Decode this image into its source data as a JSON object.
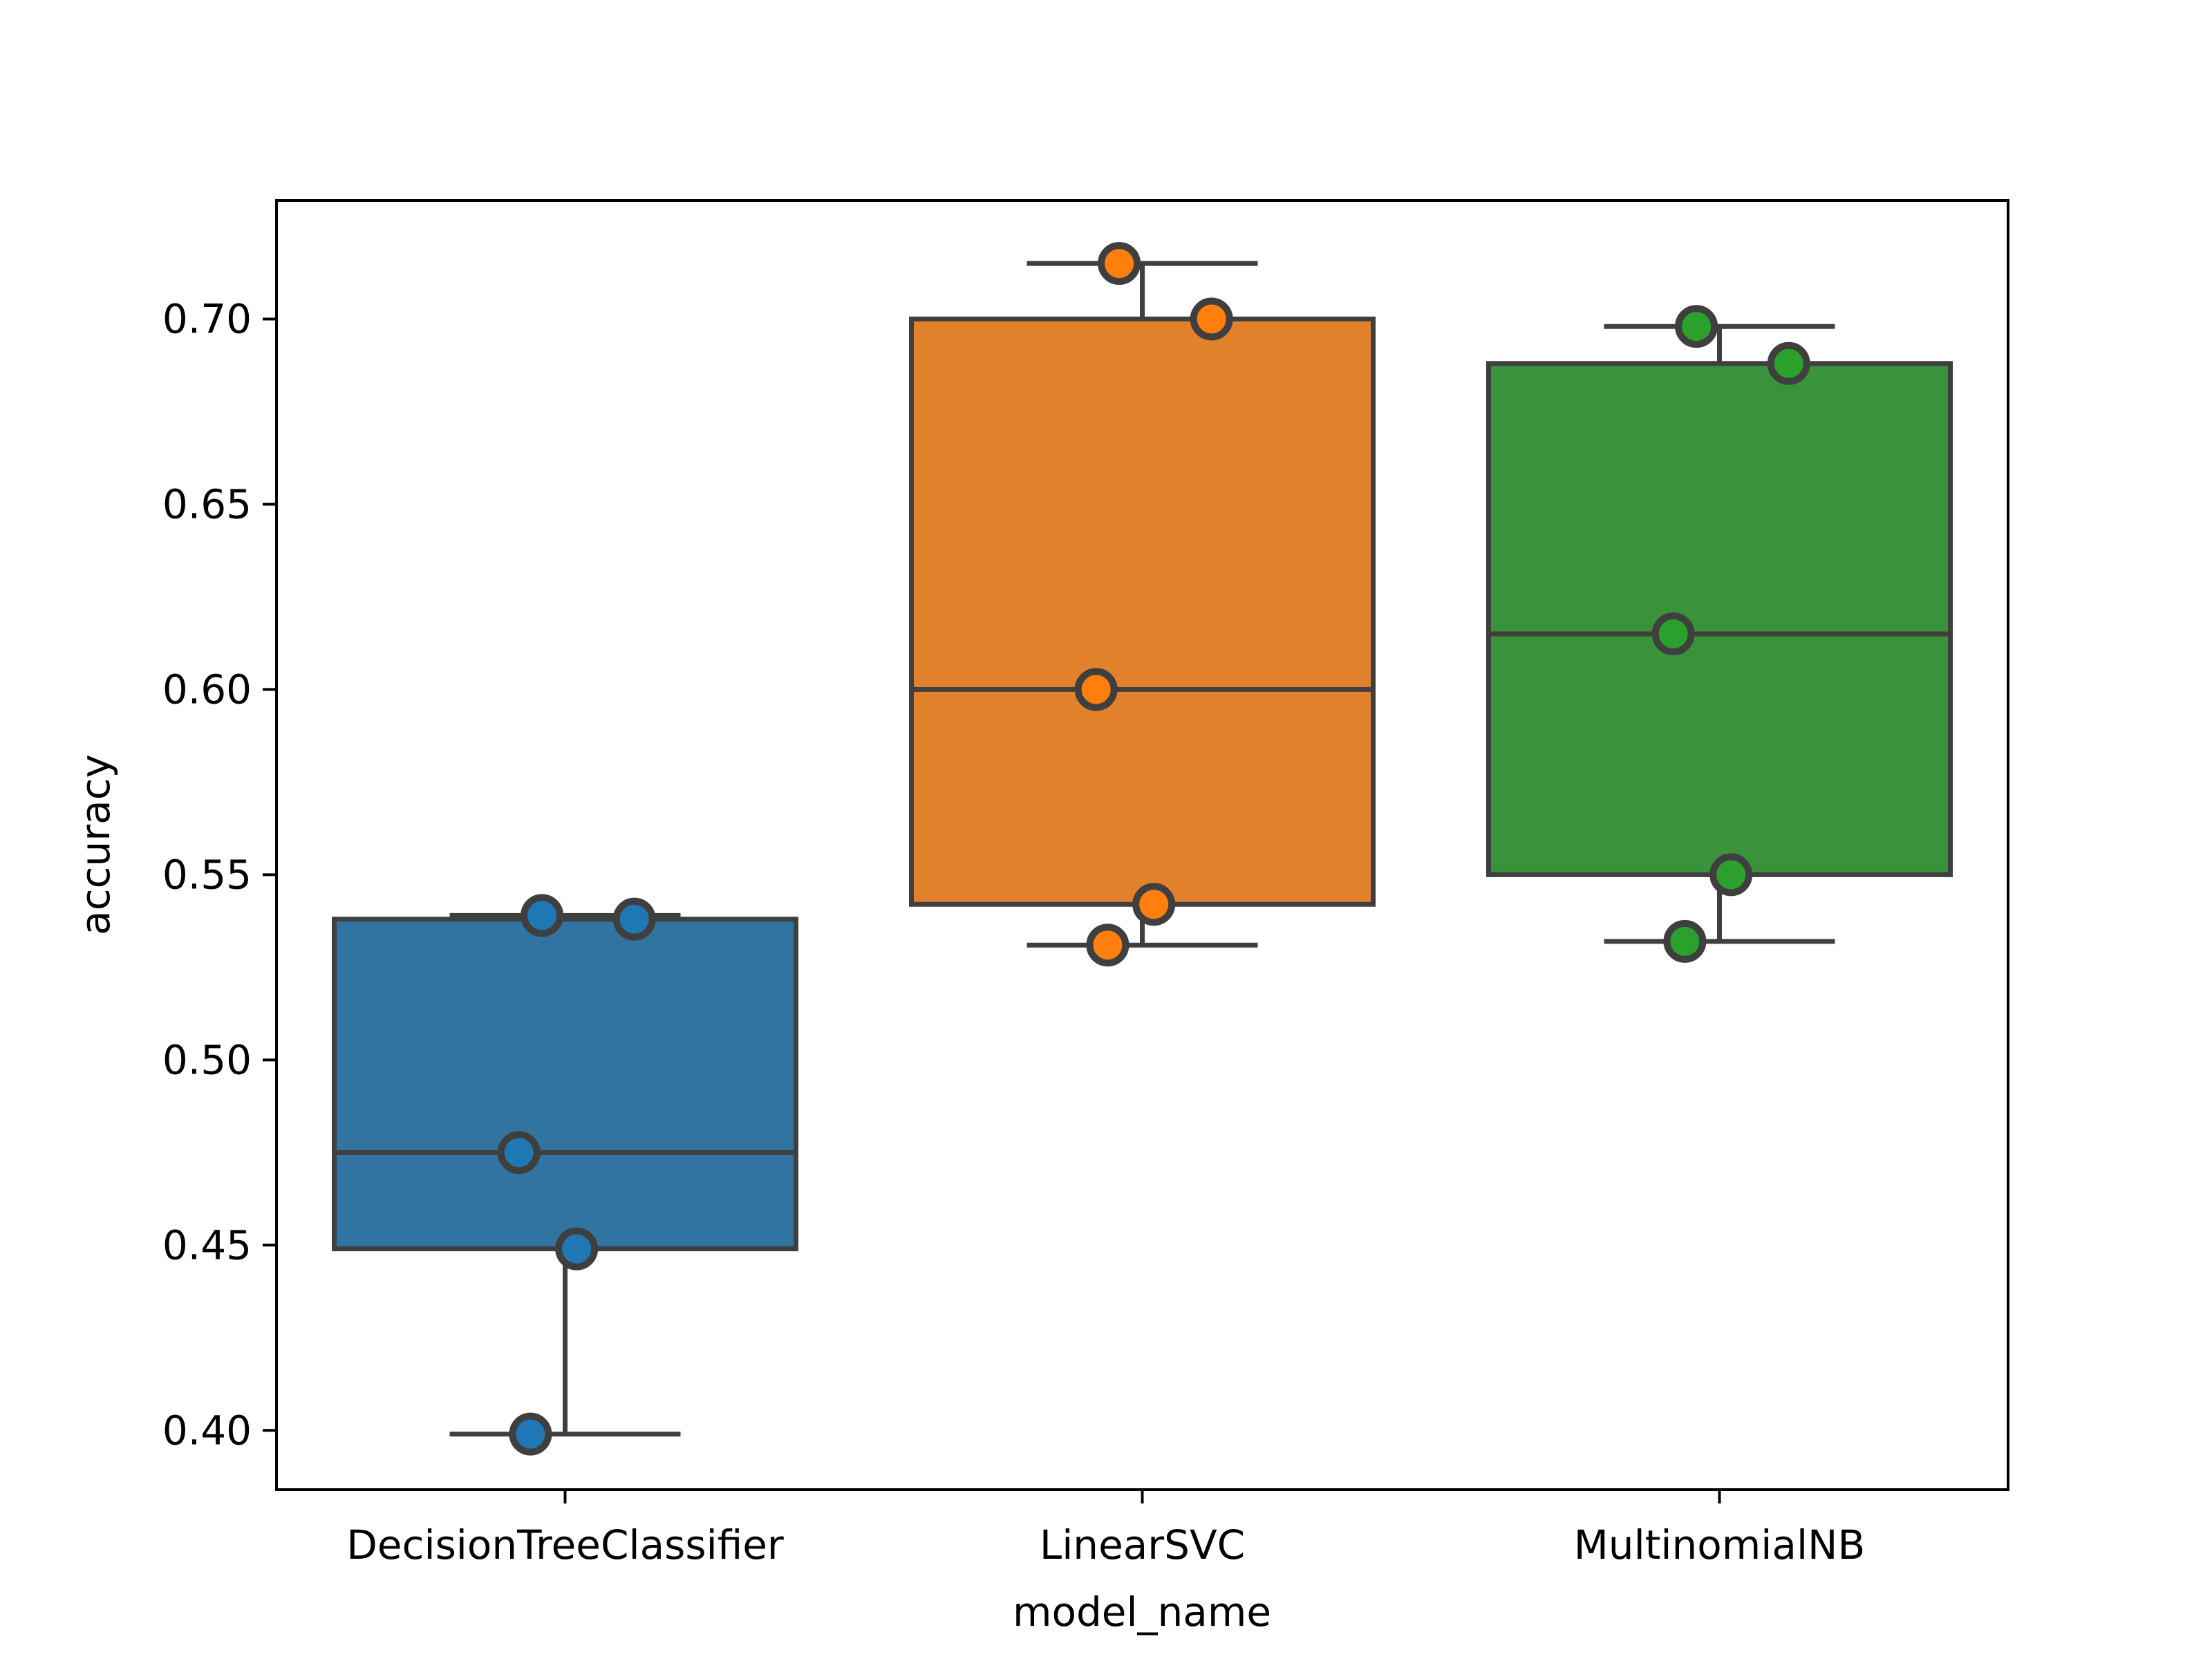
{
  "chart_data": {
    "type": "box",
    "title": "",
    "xlabel": "model_name",
    "ylabel": "accuracy",
    "ylim": [
      0.384,
      0.732
    ],
    "yticks": [
      0.4,
      0.45,
      0.5,
      0.55,
      0.6,
      0.65,
      0.7
    ],
    "ytick_labels": [
      "0.40",
      "0.45",
      "0.50",
      "0.55",
      "0.60",
      "0.65",
      "0.70"
    ],
    "categories": [
      "DecisionTreeClassifier",
      "LinearSVC",
      "MultinomialNB"
    ],
    "edge_color": "#3f3f3f",
    "series": [
      {
        "category": "DecisionTreeClassifier",
        "box_color": "#3274a1",
        "point_color": "#1f77b4",
        "whisker_low": 0.399,
        "q1": 0.449,
        "median": 0.475,
        "q3": 0.538,
        "whisker_high": 0.539,
        "points": [
          0.539,
          0.538,
          0.475,
          0.449,
          0.399
        ]
      },
      {
        "category": "LinearSVC",
        "box_color": "#e1812c",
        "point_color": "#ff7f0e",
        "whisker_low": 0.531,
        "q1": 0.542,
        "median": 0.6,
        "q3": 0.7,
        "whisker_high": 0.715,
        "points": [
          0.715,
          0.7,
          0.6,
          0.542,
          0.531
        ]
      },
      {
        "category": "MultinomialNB",
        "box_color": "#3a923a",
        "point_color": "#2ca02c",
        "whisker_low": 0.532,
        "q1": 0.55,
        "median": 0.615,
        "q3": 0.688,
        "whisker_high": 0.698,
        "points": [
          0.698,
          0.688,
          0.615,
          0.55,
          0.532
        ]
      }
    ]
  }
}
